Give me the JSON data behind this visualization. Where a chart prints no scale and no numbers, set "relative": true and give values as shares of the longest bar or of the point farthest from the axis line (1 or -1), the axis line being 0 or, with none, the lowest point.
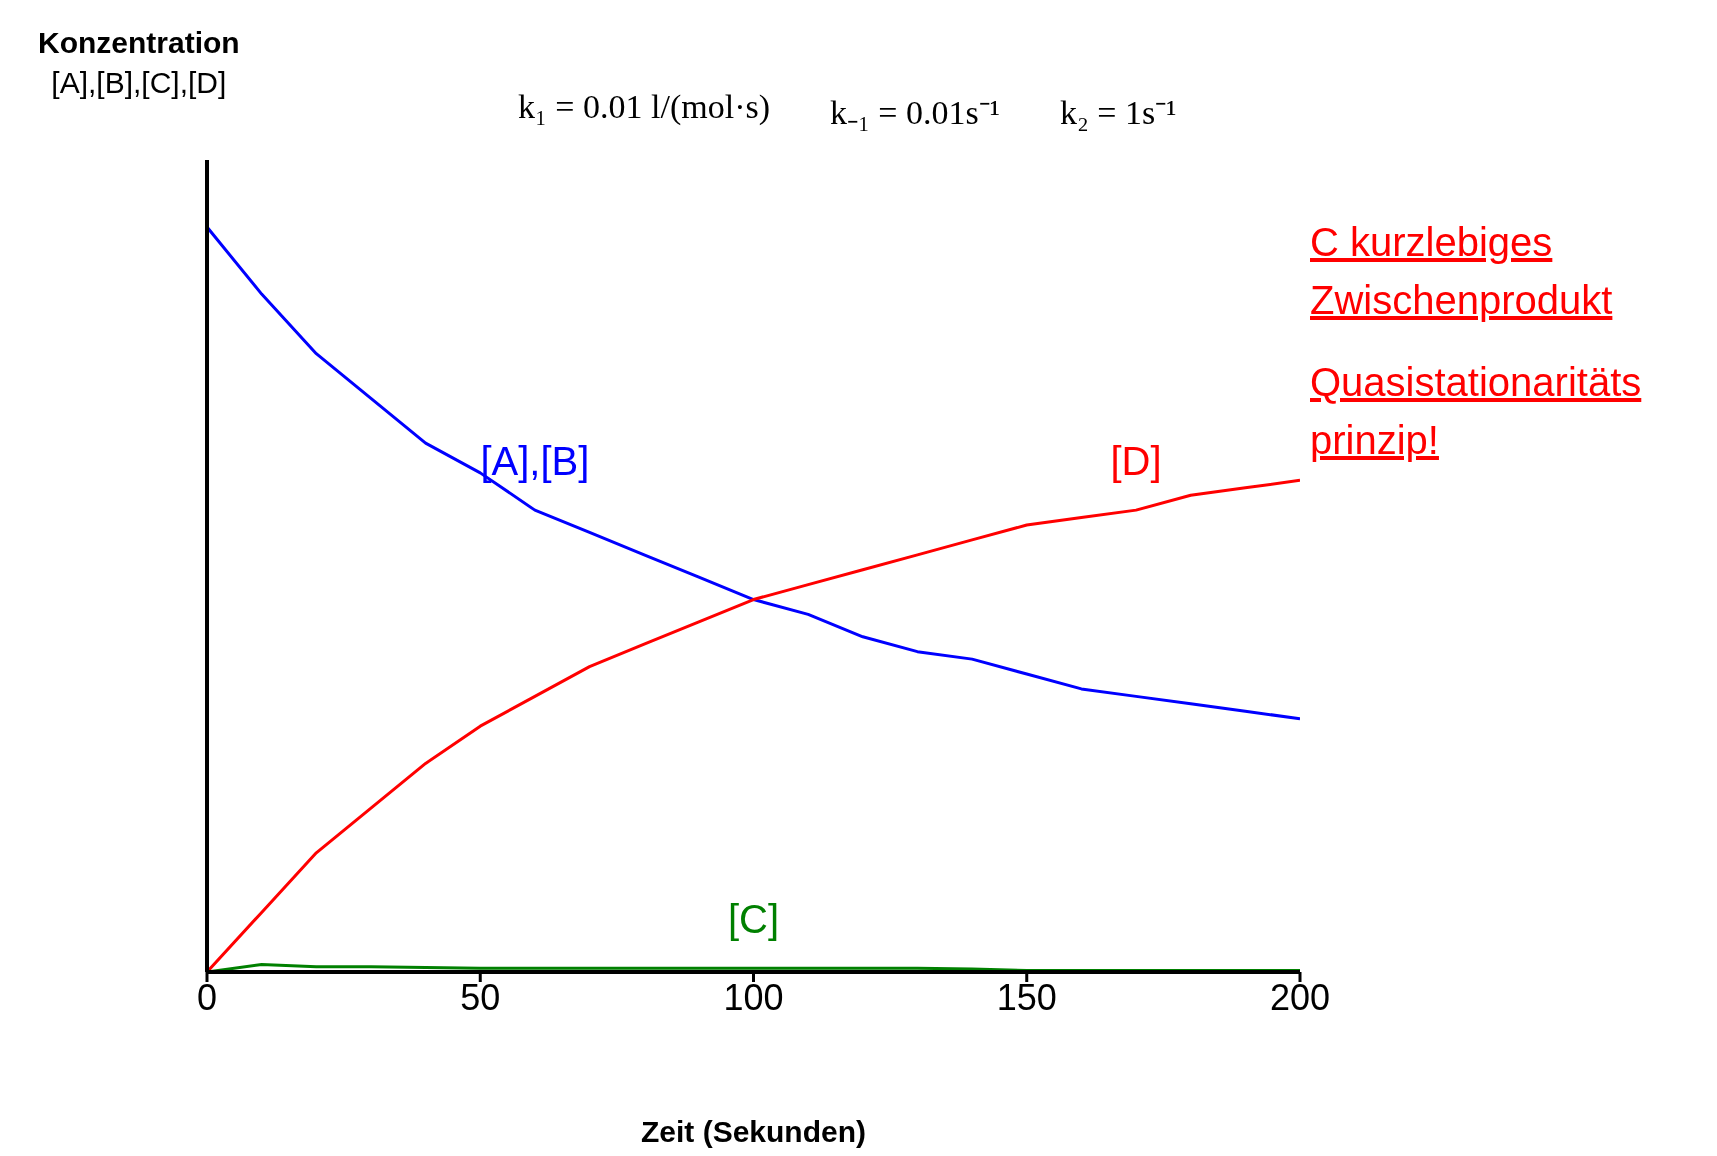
{
  "chart_data": {
    "type": "line",
    "relative": true,
    "xlabel": "Zeit (Sekunden)",
    "ylabel": "Konzentration\n[A],[B],[C],[D]",
    "x": [
      0,
      10,
      20,
      30,
      40,
      50,
      60,
      70,
      80,
      90,
      100,
      110,
      120,
      130,
      140,
      150,
      160,
      170,
      180,
      190,
      200
    ],
    "xlim": [
      0,
      200
    ],
    "xticks": [
      0,
      50,
      100,
      150,
      200
    ],
    "marker": "none",
    "line_style": "solid",
    "series": [
      {
        "name": "[A],[B]",
        "color": "#0000ff",
        "values": [
          1,
          0.91,
          0.83,
          0.77,
          0.71,
          0.67,
          0.62,
          0.59,
          0.56,
          0.53,
          0.5,
          0.48,
          0.45,
          0.43,
          0.42,
          0.4,
          0.38,
          0.37,
          0.36,
          0.35,
          0.34
        ]
      },
      {
        "name": "[C]",
        "color": "#008000",
        "values": [
          0,
          0.01,
          0.007,
          0.007,
          0.006,
          0.005,
          0.005,
          0.005,
          0.005,
          0.005,
          0.005,
          0.005,
          0.005,
          0.005,
          0.004,
          0.002,
          0.002,
          0.002,
          0.002,
          0.002,
          0.002
        ]
      },
      {
        "name": "[D]",
        "color": "#ff0000",
        "values": [
          0,
          0.08,
          0.16,
          0.22,
          0.28,
          0.33,
          0.37,
          0.41,
          0.44,
          0.47,
          0.5,
          0.52,
          0.54,
          0.56,
          0.58,
          0.6,
          0.61,
          0.62,
          0.64,
          0.65,
          0.66
        ]
      }
    ],
    "annotations": [
      "k₁ = 0.01 l/(mol·s)",
      "k₋₁ = 0.01s⁻¹",
      "k₂ = 1s⁻¹",
      "C kurzlebiges Zwischenprodukt",
      "Quasistationaritäts prinzip!"
    ]
  }
}
